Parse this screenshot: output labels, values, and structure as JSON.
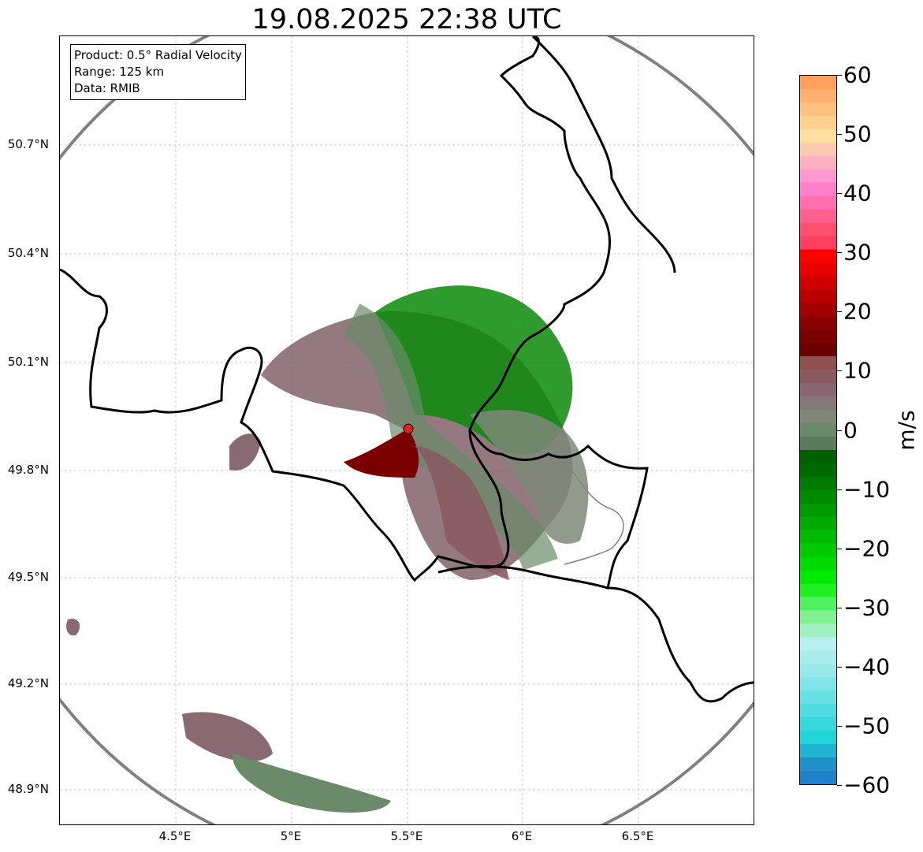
{
  "title": "19.08.2025 22:38 UTC",
  "info_box": {
    "product": "Product: 0.5° Radial Velocity",
    "range": "Range: 125 km",
    "data": "Data: RMIB"
  },
  "latitude_labels": [
    "50.7°N",
    "50.4°N",
    "50.1°N",
    "49.8°N",
    "49.5°N",
    "49.2°N",
    "48.9°N"
  ],
  "longitude_labels": [
    "4.5°E",
    "5°E",
    "5.5°E",
    "6°E",
    "6.5°E"
  ],
  "colorbar": {
    "unit": "m/s",
    "tick_labels": [
      "60",
      "50",
      "40",
      "30",
      "20",
      "10",
      "0",
      "−10",
      "−20",
      "−30",
      "−40",
      "−50",
      "−60"
    ],
    "min": -60,
    "max": 60,
    "colors_top_to_bottom": [
      "#ffa060",
      "#ffb070",
      "#ffc080",
      "#ffd090",
      "#ffe0a0",
      "#ffc8b0",
      "#ffb0c0",
      "#ff98d0",
      "#ff80c8",
      "#ff70b0",
      "#ff6090",
      "#ff5070",
      "#ff4060",
      "#ff0000",
      "#e80000",
      "#d00000",
      "#b80000",
      "#a00000",
      "#880000",
      "#7a0000",
      "#6a0000",
      "#905050",
      "#8a5a62",
      "#8a6672",
      "#857878",
      "#7e8878",
      "#6a8a6a",
      "#5a7a5a",
      "#006000",
      "#006a00",
      "#007a00",
      "#008a00",
      "#009a00",
      "#00aa00",
      "#00ba00",
      "#00ca00",
      "#00da00",
      "#00ea00",
      "#20f020",
      "#50f060",
      "#80f090",
      "#a0f0c0",
      "#b8f0f0",
      "#a8ecee",
      "#98e8ec",
      "#80e4e8",
      "#68e0e4",
      "#50dce0",
      "#38d8dc",
      "#20d4d8",
      "#20b4d0",
      "#2090c8",
      "#2080c8"
    ]
  },
  "radar_site": {
    "lon": 5.5,
    "lat": 49.91
  },
  "colors": {
    "range_ring": "#808080",
    "border": "#000000",
    "minor_border": "#808080",
    "site_marker": "#e02020",
    "grid": "#c8c8c8"
  }
}
